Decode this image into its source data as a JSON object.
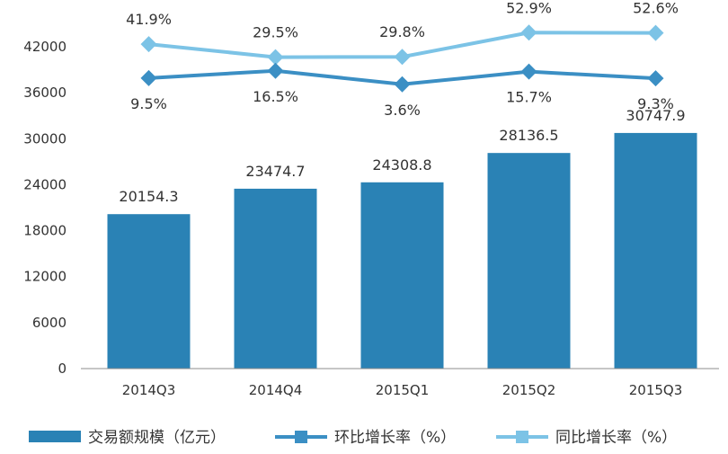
{
  "chart_data": {
    "type": "bar",
    "categories": [
      "2014Q3",
      "2014Q4",
      "2015Q1",
      "2015Q2",
      "2015Q3"
    ],
    "ylim": [
      0,
      42000
    ],
    "yticks": [
      "0",
      "6000",
      "12000",
      "18000",
      "24000",
      "30000",
      "36000",
      "42000"
    ],
    "grid": false,
    "legend_position": "bottom",
    "series": [
      {
        "name": "交易额规模（亿元）",
        "type": "bar",
        "color": "#2a82b5",
        "values": [
          20154.3,
          23474.7,
          24308.8,
          28136.5,
          30747.9
        ],
        "labels": [
          "20154.3",
          "23474.7",
          "24308.8",
          "28136.5",
          "30747.9"
        ]
      },
      {
        "name": "环比增长率（%）",
        "type": "line",
        "color": "#3b8fc4",
        "values": [
          9.5,
          16.5,
          3.6,
          15.7,
          9.3
        ],
        "labels": [
          "9.5%",
          "16.5%",
          "3.6%",
          "15.7%",
          "9.3%"
        ]
      },
      {
        "name": "同比增长率（%）",
        "type": "line",
        "color": "#7cc3e6",
        "values": [
          41.9,
          29.5,
          29.8,
          52.9,
          52.6
        ],
        "labels": [
          "41.9%",
          "29.5%",
          "29.8%",
          "52.9%",
          "52.6%"
        ]
      }
    ]
  }
}
